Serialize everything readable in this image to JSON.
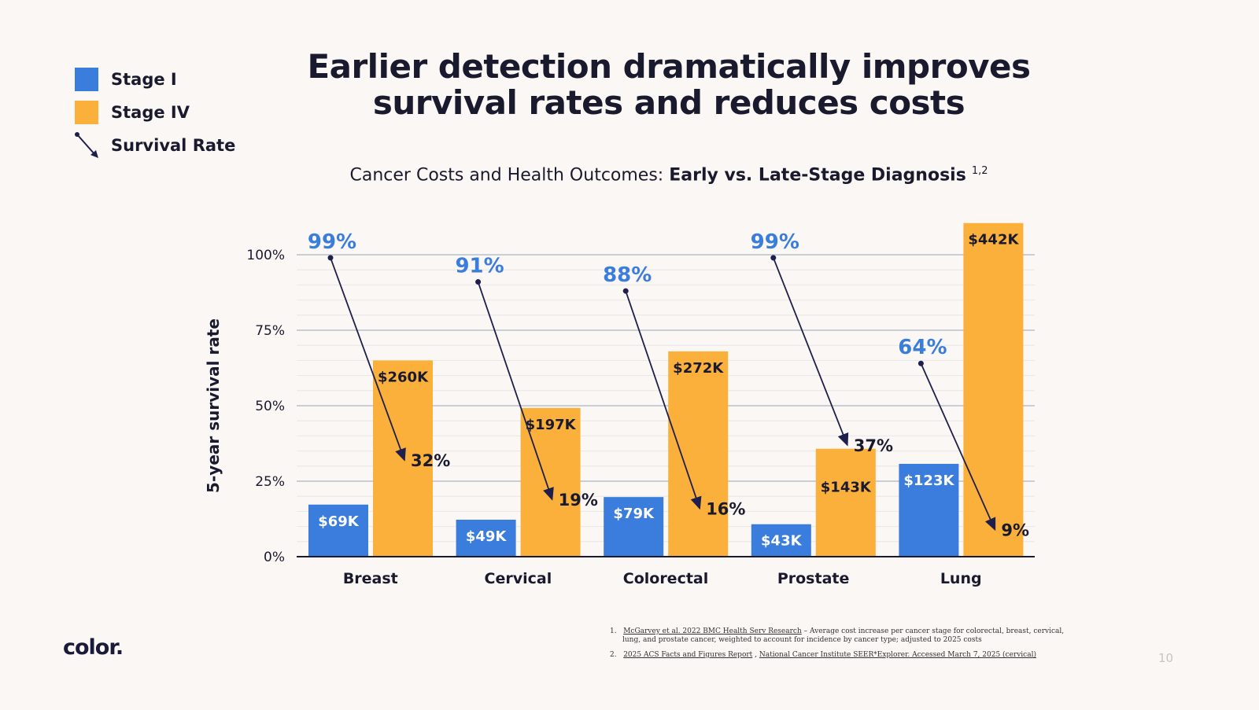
{
  "title_line1": "Earlier detection dramatically improves",
  "title_line2": "survival rates and reduces costs",
  "subtitle": {
    "prefix": "Cancer Costs and Health Outcomes: ",
    "bold": "Early vs. Late-Stage Diagnosis",
    "sup": "1,2"
  },
  "legend": [
    {
      "label": "Stage I",
      "color": "#3b7ddd"
    },
    {
      "label": "Stage IV",
      "color": "#fbb03b"
    },
    {
      "label": "Survival Rate",
      "icon": "arrow-icon"
    }
  ],
  "chart_data": {
    "type": "bar",
    "ylabel": "5-year survival rate",
    "ylim": [
      0,
      100
    ],
    "yticks": [
      "0%",
      "25%",
      "50%",
      "75%",
      "100%"
    ],
    "grid": true,
    "categories": [
      "Breast",
      "Cervical",
      "Colorectal",
      "Prostate",
      "Lung"
    ],
    "series": [
      {
        "name": "Stage I",
        "color": "#3b7ddd",
        "cost_k": [
          69,
          49,
          79,
          43,
          123
        ],
        "labels": [
          "$69K",
          "$49K",
          "$79K",
          "$43K",
          "$123K"
        ]
      },
      {
        "name": "Stage IV",
        "color": "#fbb03b",
        "cost_k": [
          260,
          197,
          272,
          143,
          442
        ],
        "labels": [
          "$260K",
          "$197K",
          "$272K",
          "$143K",
          "$442K"
        ]
      }
    ],
    "survival": {
      "name": "Survival Rate",
      "stage1": [
        99,
        91,
        88,
        99,
        64
      ],
      "stage4": [
        32,
        19,
        16,
        37,
        9
      ],
      "stage1_labels": [
        "99%",
        "91%",
        "88%",
        "99%",
        "64%"
      ],
      "stage4_labels": [
        "32%",
        "19%",
        "16%",
        "37%",
        "9%"
      ]
    }
  },
  "footnotes": [
    {
      "num": "1.",
      "link": "McGarvey et al. 2022 BMC Health Serv Research",
      "text": " – Average cost increase per cancer stage for colorectal, breast, cervical, lung, and prostate cancer, weighted to account for incidence by cancer type; adjusted to 2025 costs"
    },
    {
      "num": "2.",
      "link": "2025 ACS Facts and Figures Report",
      "sep": " , ",
      "link2": "National Cancer Institute SEER*Explorer. Accessed March 7, 2025 (cervical)"
    }
  ],
  "logo": "color.",
  "page_number": "10"
}
